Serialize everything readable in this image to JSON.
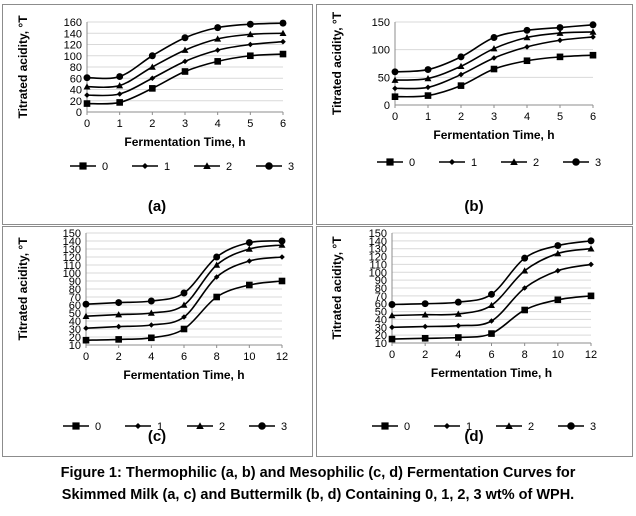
{
  "chart_data": [
    {
      "type": "line",
      "panel_label": "(a)",
      "xlabel": "Fermentation Time, h",
      "ylabel": "Titrated acidity, °T",
      "xlim": [
        0,
        6
      ],
      "ylim": [
        0,
        160
      ],
      "xticks": [
        0,
        1,
        2,
        3,
        4,
        5,
        6
      ],
      "yticks": [
        0,
        20,
        40,
        60,
        80,
        100,
        120,
        140,
        160
      ],
      "x": [
        0,
        1,
        2,
        3,
        4,
        5,
        6
      ],
      "grid": "horizontal",
      "legend_position": "bottom",
      "series": [
        {
          "name": "0",
          "marker": "square",
          "values": [
            15,
            17,
            42,
            72,
            90,
            100,
            103
          ]
        },
        {
          "name": "1",
          "marker": "diamond",
          "values": [
            30,
            32,
            60,
            90,
            110,
            120,
            125
          ]
        },
        {
          "name": "2",
          "marker": "triangle",
          "values": [
            45,
            47,
            80,
            110,
            130,
            138,
            140
          ]
        },
        {
          "name": "3",
          "marker": "circle",
          "values": [
            61,
            63,
            100,
            132,
            150,
            156,
            158
          ]
        }
      ]
    },
    {
      "type": "line",
      "panel_label": "(b)",
      "xlabel": "Fermentation Time, h",
      "ylabel": "Titrated acidity, °T",
      "xlim": [
        0,
        6
      ],
      "ylim": [
        0,
        150
      ],
      "xticks": [
        0,
        1,
        2,
        3,
        4,
        5,
        6
      ],
      "yticks": [
        0,
        50,
        100,
        150
      ],
      "x": [
        0,
        1,
        2,
        3,
        4,
        5,
        6
      ],
      "grid": "horizontal",
      "legend_position": "bottom",
      "series": [
        {
          "name": "0",
          "marker": "square",
          "values": [
            15,
            17,
            35,
            65,
            80,
            87,
            90
          ]
        },
        {
          "name": "1",
          "marker": "diamond",
          "values": [
            30,
            32,
            55,
            85,
            105,
            117,
            123
          ]
        },
        {
          "name": "2",
          "marker": "triangle",
          "values": [
            45,
            48,
            70,
            102,
            122,
            130,
            132
          ]
        },
        {
          "name": "3",
          "marker": "circle",
          "values": [
            60,
            64,
            87,
            122,
            135,
            140,
            145
          ]
        }
      ]
    },
    {
      "type": "line",
      "panel_label": "(c)",
      "xlabel": "Fermentation Time, h",
      "ylabel": "Titrated acidity, °T",
      "xlim": [
        0,
        12
      ],
      "ylim": [
        10,
        150
      ],
      "xticks": [
        0,
        2,
        4,
        6,
        8,
        10,
        12
      ],
      "yticks": [
        10,
        20,
        30,
        40,
        50,
        60,
        70,
        80,
        90,
        100,
        110,
        120,
        130,
        140,
        150
      ],
      "x": [
        0,
        2,
        4,
        6,
        8,
        10,
        12
      ],
      "grid": "horizontal",
      "legend_position": "bottom",
      "series": [
        {
          "name": "0",
          "marker": "square",
          "values": [
            16,
            17,
            19,
            30,
            70,
            85,
            90
          ]
        },
        {
          "name": "1",
          "marker": "diamond",
          "values": [
            31,
            33,
            35,
            45,
            95,
            115,
            120
          ]
        },
        {
          "name": "2",
          "marker": "triangle",
          "values": [
            46,
            48,
            50,
            60,
            110,
            130,
            135
          ]
        },
        {
          "name": "3",
          "marker": "circle",
          "values": [
            61,
            63,
            65,
            75,
            120,
            138,
            140
          ]
        }
      ]
    },
    {
      "type": "line",
      "panel_label": "(d)",
      "xlabel": "Fermentation Time, h",
      "ylabel": "Titrated acidity, °T",
      "xlim": [
        0,
        12
      ],
      "ylim": [
        10,
        150
      ],
      "xticks": [
        0,
        2,
        4,
        6,
        8,
        10,
        12
      ],
      "yticks": [
        10,
        20,
        30,
        40,
        50,
        60,
        70,
        80,
        90,
        100,
        110,
        120,
        130,
        140,
        150
      ],
      "x": [
        0,
        2,
        4,
        6,
        8,
        10,
        12
      ],
      "grid": "horizontal",
      "legend_position": "bottom",
      "series": [
        {
          "name": "0",
          "marker": "square",
          "values": [
            15,
            16,
            17,
            22,
            52,
            65,
            70
          ]
        },
        {
          "name": "1",
          "marker": "diamond",
          "values": [
            30,
            31,
            32,
            38,
            80,
            102,
            110
          ]
        },
        {
          "name": "2",
          "marker": "triangle",
          "values": [
            45,
            46,
            47,
            58,
            102,
            124,
            130
          ]
        },
        {
          "name": "3",
          "marker": "circle",
          "values": [
            59,
            60,
            62,
            72,
            118,
            134,
            140
          ]
        }
      ]
    }
  ],
  "caption": {
    "line1": "Figure 1: Thermophilic (a, b) and Mesophilic (c, d) Fermentation Curves for",
    "line2": "Skimmed Milk (a, c) and Buttermilk (b, d) Containing 0, 1, 2, 3 wt% of WPH."
  }
}
